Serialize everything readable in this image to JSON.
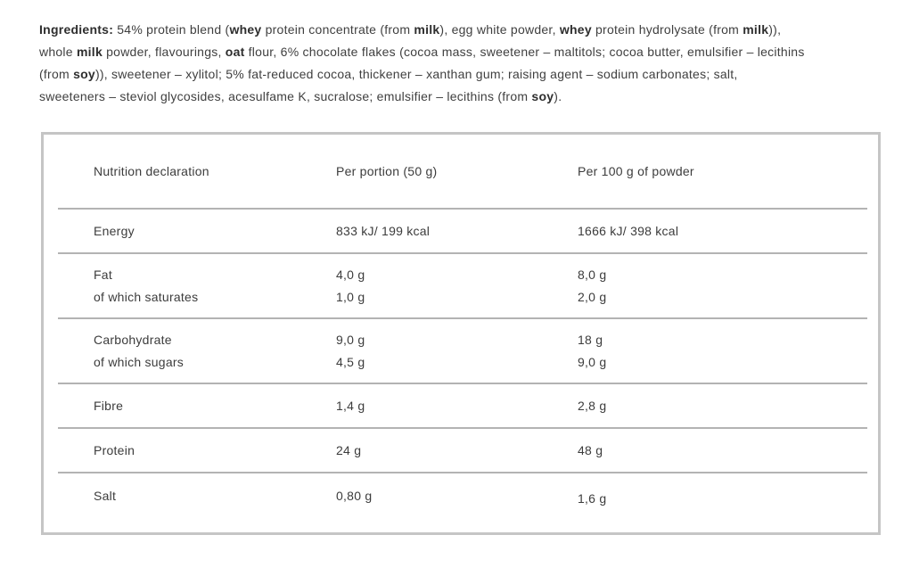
{
  "ingredients": {
    "lines": [
      [
        {
          "t": "Ingredients:",
          "b": true
        },
        {
          "t": " 54% protein blend (",
          "b": false
        },
        {
          "t": "whey",
          "b": true
        },
        {
          "t": " protein concentrate (from ",
          "b": false
        },
        {
          "t": "milk",
          "b": true
        },
        {
          "t": "), egg white powder, ",
          "b": false
        },
        {
          "t": "whey",
          "b": true
        },
        {
          "t": " protein hydrolysate (from ",
          "b": false
        },
        {
          "t": "milk",
          "b": true
        },
        {
          "t": ")),",
          "b": false
        }
      ],
      [
        {
          "t": "whole ",
          "b": false
        },
        {
          "t": "milk",
          "b": true
        },
        {
          "t": " powder, flavourings, ",
          "b": false
        },
        {
          "t": "oat",
          "b": true
        },
        {
          "t": " flour, 6% chocolate flakes (cocoa mass, sweetener – maltitols; cocoa butter, emulsifier – lecithins",
          "b": false
        }
      ],
      [
        {
          "t": "(from ",
          "b": false
        },
        {
          "t": "soy",
          "b": true
        },
        {
          "t": ")), sweetener – xylitol; 5% fat-reduced cocoa, thickener – xanthan gum; raising agent – sodium carbonates; salt,",
          "b": false
        }
      ],
      [
        {
          "t": "sweeteners – steviol glycosides, acesulfame K, sucralose; emulsifier – lecithins (from ",
          "b": false
        },
        {
          "t": "soy",
          "b": true
        },
        {
          "t": ").",
          "b": false
        }
      ]
    ]
  },
  "table": {
    "headers": [
      "Nutrition declaration",
      "Per portion (50 g)",
      "Per 100 g of powder"
    ],
    "rows": [
      {
        "name": "Energy",
        "sub": "",
        "portion": "833 kJ/ 199 kcal",
        "sub_portion": "",
        "per100": "1666 kJ/ 398 kcal",
        "sub_per100": "",
        "kind": "single"
      },
      {
        "name": "Fat",
        "sub": "of which saturates",
        "portion": "4,0 g",
        "sub_portion": "1,0 g",
        "per100": "8,0 g",
        "sub_per100": "2,0 g",
        "kind": "two"
      },
      {
        "name": "Carbohydrate",
        "sub": "of which sugars",
        "portion": "9,0 g",
        "sub_portion": "4,5 g",
        "per100": "18 g",
        "sub_per100": "9,0 g",
        "kind": "two"
      },
      {
        "name": "Fibre",
        "sub": "",
        "portion": "1,4 g",
        "sub_portion": "",
        "per100": "2,8 g",
        "sub_per100": "",
        "kind": "single"
      },
      {
        "name": "Protein",
        "sub": "",
        "portion": "24 g",
        "sub_portion": "",
        "per100": "48 g",
        "sub_per100": "",
        "kind": "single"
      },
      {
        "name": "Salt",
        "sub": "",
        "portion": "0,80 g",
        "sub_portion": "",
        "per100": "1,6 g",
        "sub_per100": "",
        "kind": "salt"
      }
    ]
  },
  "colors": {
    "text": "#3c3c3c",
    "bold_text": "#2e2e2e",
    "outer_border": "#c5c5c5",
    "divider": "#b3b3b3",
    "background": "#ffffff"
  }
}
